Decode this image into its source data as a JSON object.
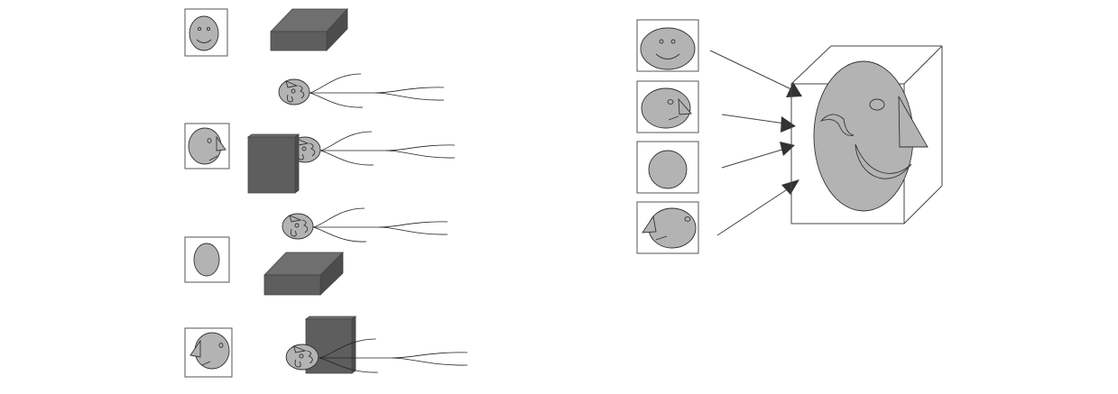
{
  "colors": {
    "face": "#b3b3b3",
    "block_front": "#5e5e5e",
    "block_top": "#6f6f6f",
    "block_side": "#4c4c4c",
    "background": "#ffffff"
  },
  "left_panel": {
    "thumbnails": [
      "face-front-icon",
      "face-profile-right-icon",
      "face-back-icon",
      "face-profile-left-icon"
    ],
    "blocks": [
      "flat-block-icon",
      "tall-block-icon",
      "flat-block-icon",
      "tall-block-icon"
    ],
    "heads": [
      "head-with-wires-icon",
      "head-with-wires-icon",
      "head-with-wires-icon",
      "head-with-wires-icon"
    ]
  },
  "right_panel": {
    "views": [
      "face-front-icon",
      "face-profile-right-icon",
      "face-back-icon",
      "face-profile-left-icon"
    ],
    "target": "cube-composite-face-icon"
  }
}
